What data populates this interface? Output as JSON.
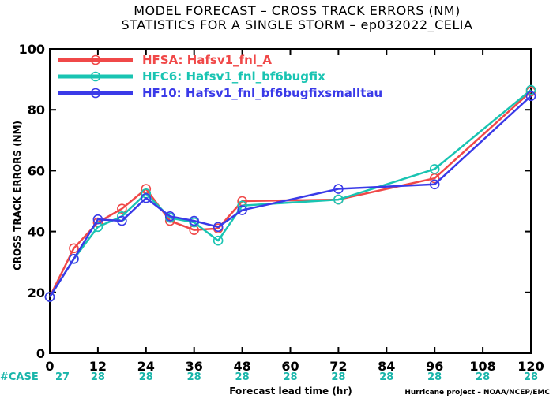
{
  "titles": {
    "line1": "MODEL FORECAST – CROSS TRACK ERRORS (NM)",
    "line2": "STATISTICS FOR A SINGLE STORM – ep032022_CELIA"
  },
  "credit": "Hurricane project – NOAA/NCEP/EMC",
  "case_row": {
    "label": "#CASE",
    "counts": [
      "27",
      "28",
      "28",
      "28",
      "28",
      "28",
      "28",
      "28",
      "28",
      "28",
      "28"
    ]
  },
  "colors": {
    "HFSA": "#f04848",
    "HFC6": "#19c4b2",
    "HF10": "#3a3ae8",
    "case": "#19b5aa"
  },
  "chart_data": {
    "type": "line",
    "xlabel": "Forecast lead time (hr)",
    "ylabel": "CROSS TRACK ERRORS (NM)",
    "xlim": [
      0,
      120
    ],
    "ylim": [
      0,
      100
    ],
    "xticks": [
      0,
      12,
      24,
      36,
      48,
      60,
      72,
      84,
      96,
      108,
      120
    ],
    "yticks": [
      0,
      20,
      40,
      60,
      80,
      100
    ],
    "grid": false,
    "legend_position": "top-left",
    "series": [
      {
        "name": "HFSA:  Hafsv1_fnl_A",
        "color": "#f04848",
        "x": [
          0,
          6,
          12,
          18,
          24,
          30,
          36,
          42,
          48,
          72,
          96,
          120
        ],
        "y": [
          18.5,
          34.5,
          43,
          47.5,
          54,
          43.5,
          40.5,
          41,
          50,
          50.5,
          57.5,
          86
        ]
      },
      {
        "name": "HFC6:  Hafsv1_fnl_bf6bugfix",
        "color": "#19c4b2",
        "x": [
          0,
          6,
          12,
          18,
          24,
          30,
          36,
          42,
          48,
          72,
          96,
          120
        ],
        "y": [
          18.5,
          31,
          41.5,
          45,
          52.5,
          44.5,
          43,
          37,
          48.5,
          50.5,
          60.5,
          86.5
        ]
      },
      {
        "name": "HF10:  Hafsv1_fnl_bf6bugfixsmalltau",
        "color": "#3a3ae8",
        "x": [
          0,
          6,
          12,
          18,
          24,
          30,
          36,
          42,
          48,
          72,
          96,
          120
        ],
        "y": [
          18.5,
          31,
          44,
          43.5,
          51,
          45,
          43.5,
          41.5,
          47,
          54,
          55.5,
          84.5
        ]
      }
    ]
  }
}
